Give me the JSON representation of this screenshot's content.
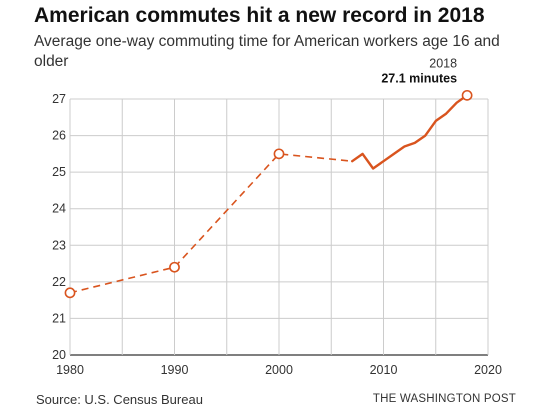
{
  "header": {
    "title": "American commutes hit a new record in 2018",
    "subtitle": "Average one-way commuting time for American workers age 16 and older"
  },
  "footer": {
    "source": "Source: U.S. Census Bureau",
    "credit": "THE WASHINGTON POST"
  },
  "colors": {
    "series": "#d9541e",
    "grid": "#cccccc",
    "axis": "#333333"
  },
  "chart_data": {
    "type": "line",
    "title": "American commutes hit a new record in 2018",
    "subtitle": "Average one-way commuting time for American workers age 16 and older",
    "xlim": [
      1980,
      2020
    ],
    "ylim": [
      20,
      27
    ],
    "x_ticks": [
      1980,
      1990,
      2000,
      2010,
      2020
    ],
    "y_ticks": [
      20,
      21,
      22,
      23,
      24,
      25,
      26,
      27
    ],
    "grid": true,
    "x_minor_grid_step": 5,
    "series": [
      {
        "style": "dashed",
        "points": [
          {
            "x": 1980,
            "y": 21.7
          },
          {
            "x": 1990,
            "y": 22.4
          },
          {
            "x": 2000,
            "y": 25.5
          },
          {
            "x": 2007,
            "y": 25.3
          }
        ]
      },
      {
        "style": "solid",
        "points": [
          {
            "x": 2007,
            "y": 25.3
          },
          {
            "x": 2008,
            "y": 25.5
          },
          {
            "x": 2009,
            "y": 25.1
          },
          {
            "x": 2010,
            "y": 25.3
          },
          {
            "x": 2011,
            "y": 25.5
          },
          {
            "x": 2012,
            "y": 25.7
          },
          {
            "x": 2013,
            "y": 25.8
          },
          {
            "x": 2014,
            "y": 26.0
          },
          {
            "x": 2015,
            "y": 26.4
          },
          {
            "x": 2016,
            "y": 26.6
          },
          {
            "x": 2017,
            "y": 26.9
          },
          {
            "x": 2018,
            "y": 27.1
          }
        ]
      }
    ],
    "markers": [
      {
        "x": 1980,
        "y": 21.7
      },
      {
        "x": 1990,
        "y": 22.4
      },
      {
        "x": 2000,
        "y": 25.5
      },
      {
        "x": 2018,
        "y": 27.1
      }
    ],
    "annotation": {
      "x": 2018,
      "y": 27.1,
      "year_label": "2018",
      "value_label": "27.1 minutes"
    }
  }
}
